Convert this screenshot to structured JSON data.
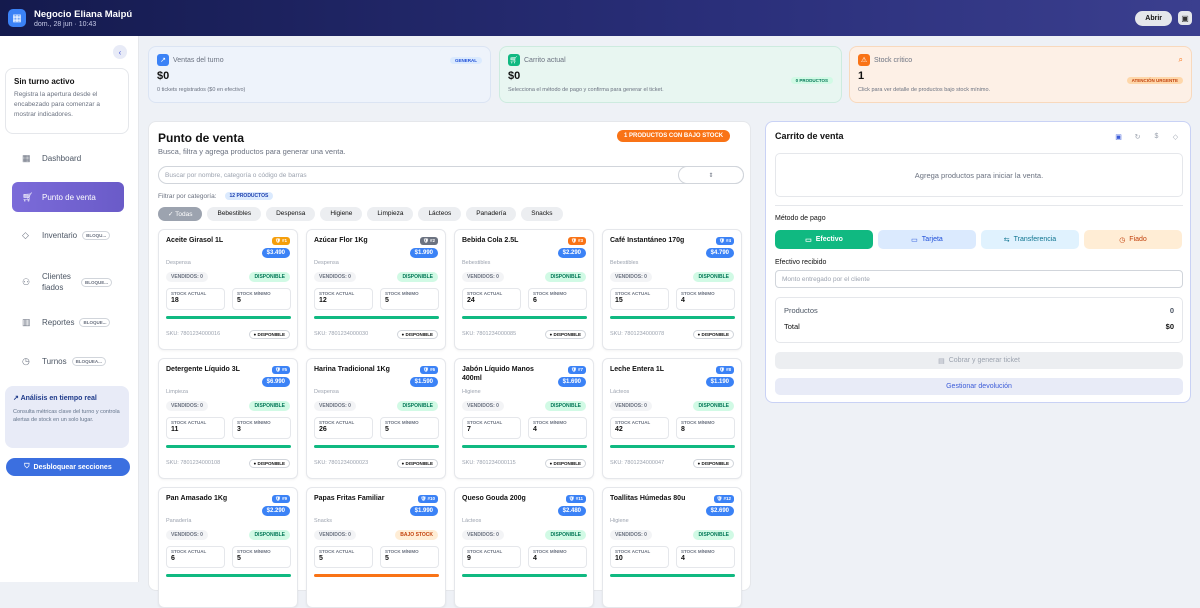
{
  "header": {
    "business": "Negocio Eliana Maipú",
    "datetime": "dom., 28 jun · 10:43",
    "open_label": "Abrir"
  },
  "sidebar": {
    "no_shift_title": "Sin turno activo",
    "no_shift_desc": "Registra la apertura desde el encabezado para comenzar a mostrar indicadores.",
    "items": [
      {
        "label": "Dashboard",
        "icon": "grid-icon",
        "locked": ""
      },
      {
        "label": "Punto de venta",
        "icon": "cart-icon",
        "locked": ""
      },
      {
        "label": "Inventario",
        "icon": "box-icon",
        "locked": "BLOQU..."
      },
      {
        "label": "Clientes fiados",
        "icon": "users-icon",
        "locked": "BLOQUE..."
      },
      {
        "label": "Reportes",
        "icon": "chart-icon",
        "locked": "BLOQUE..."
      },
      {
        "label": "Turnos",
        "icon": "clock-icon",
        "locked": "BLOQUEA..."
      }
    ],
    "analytics_title": "Análisis en tiempo real",
    "analytics_desc": "Consulta métricas clave del turno y controla alertas de stock en un solo lugar.",
    "unlock_label": "Desbloquear secciones"
  },
  "stats": [
    {
      "label": "Ventas del turno",
      "value": "$0",
      "badge": "GENERAL",
      "sub": "0 tickets registrados ($0 en efectivo)"
    },
    {
      "label": "Carrito actual",
      "value": "$0",
      "badge": "0 PRODUCTOS",
      "sub": "Selecciona el método de pago y confirma para generar el ticket."
    },
    {
      "label": "Stock crítico",
      "value": "1",
      "badge": "ATENCIÓN URGENTE",
      "sub": "Click para ver detalle de productos bajo stock mínimo."
    }
  ],
  "pos": {
    "title": "Punto de venta",
    "subtitle": "Busca, filtra y agrega productos para generar una venta.",
    "low_stock_badge": "1 PRODUCTOS CON BAJO STOCK",
    "search_placeholder": "Buscar por nombre, categoría o código de barras",
    "filter_label": "Filtrar por categoría:",
    "product_count": "12 PRODUCTOS",
    "categories": [
      "Todas",
      "Bebestibles",
      "Despensa",
      "Higiene",
      "Limpieza",
      "Lácteos",
      "Panadería",
      "Snacks"
    ]
  },
  "labels": {
    "sold": "VENDIDOS: 0",
    "stock_actual": "STOCK ACTUAL",
    "stock_min": "STOCK MÍNIMO",
    "sku_prefix": "SKU: "
  },
  "products": [
    {
      "name": "Aceite Girasol 1L",
      "num": "#1",
      "price": "$3.490",
      "category": "Despensa",
      "status": "DISPONIBLE",
      "stock": "18",
      "min": "5",
      "sku": "SKU: 7801234000016",
      "tag": "DISPONIBLE",
      "low": false
    },
    {
      "name": "Azúcar Flor 1Kg",
      "num": "#2",
      "price": "$1.990",
      "category": "Despensa",
      "status": "DISPONIBLE",
      "stock": "12",
      "min": "5",
      "sku": "SKU: 7801234000030",
      "tag": "DISPONIBLE",
      "low": false
    },
    {
      "name": "Bebida Cola 2.5L",
      "num": "#3",
      "price": "$2.290",
      "category": "Bebestibles",
      "status": "DISPONIBLE",
      "stock": "24",
      "min": "6",
      "sku": "SKU: 7801234000085",
      "tag": "DISPONIBLE",
      "low": false
    },
    {
      "name": "Café Instantáneo 170g",
      "num": "#4",
      "price": "$4.790",
      "category": "Bebestibles",
      "status": "DISPONIBLE",
      "stock": "15",
      "min": "4",
      "sku": "SKU: 7801234000078",
      "tag": "DISPONIBLE",
      "low": false
    },
    {
      "name": "Detergente Líquido 3L",
      "num": "#5",
      "price": "$6.990",
      "category": "Limpieza",
      "status": "DISPONIBLE",
      "stock": "11",
      "min": "3",
      "sku": "SKU: 7801234000108",
      "tag": "DISPONIBLE",
      "low": false
    },
    {
      "name": "Harina Tradicional 1Kg",
      "num": "#6",
      "price": "$1.590",
      "category": "Despensa",
      "status": "DISPONIBLE",
      "stock": "26",
      "min": "5",
      "sku": "SKU: 7801234000023",
      "tag": "DISPONIBLE",
      "low": false
    },
    {
      "name": "Jabón Líquido Manos 400ml",
      "num": "#7",
      "price": "$1.690",
      "category": "Higiene",
      "status": "DISPONIBLE",
      "stock": "7",
      "min": "4",
      "sku": "SKU: 7801234000115",
      "tag": "DISPONIBLE",
      "low": false
    },
    {
      "name": "Leche Entera 1L",
      "num": "#8",
      "price": "$1.190",
      "category": "Lácteos",
      "status": "DISPONIBLE",
      "stock": "42",
      "min": "8",
      "sku": "SKU: 7801234000047",
      "tag": "DISPONIBLE",
      "low": false
    },
    {
      "name": "Pan Amasado 1Kg",
      "num": "#9",
      "price": "$2.290",
      "category": "Panadería",
      "status": "DISPONIBLE",
      "stock": "6",
      "min": "5",
      "sku": "",
      "tag": "",
      "low": false
    },
    {
      "name": "Papas Fritas Familiar",
      "num": "#10",
      "price": "$1.990",
      "category": "Snacks",
      "status": "BAJO STOCK",
      "stock": "5",
      "min": "5",
      "sku": "",
      "tag": "",
      "low": true
    },
    {
      "name": "Queso Gouda 200g",
      "num": "#11",
      "price": "$2.480",
      "category": "Lácteos",
      "status": "DISPONIBLE",
      "stock": "9",
      "min": "4",
      "sku": "",
      "tag": "",
      "low": false
    },
    {
      "name": "Toallitas Húmedas 80u",
      "num": "#12",
      "price": "$2.690",
      "category": "Higiene",
      "status": "DISPONIBLE",
      "stock": "10",
      "min": "4",
      "sku": "",
      "tag": "",
      "low": false
    }
  ],
  "cart": {
    "title": "Carrito de venta",
    "empty": "Agrega productos para iniciar la venta.",
    "payment_label": "Método de pago",
    "methods": [
      "Efectivo",
      "Tarjeta",
      "Transferencia",
      "Fiado"
    ],
    "cash_label": "Efectivo recibido",
    "cash_placeholder": "Monto entregado por el cliente",
    "products_label": "Productos",
    "products_value": "0",
    "total_label": "Total",
    "total_value": "$0",
    "charge_label": "Cobrar y generar ticket",
    "return_label": "Gestionar devolución"
  },
  "colors": {
    "accent": "#6a5bc8",
    "green": "#10b981",
    "orange": "#f97316",
    "blue": "#3b82f6"
  }
}
